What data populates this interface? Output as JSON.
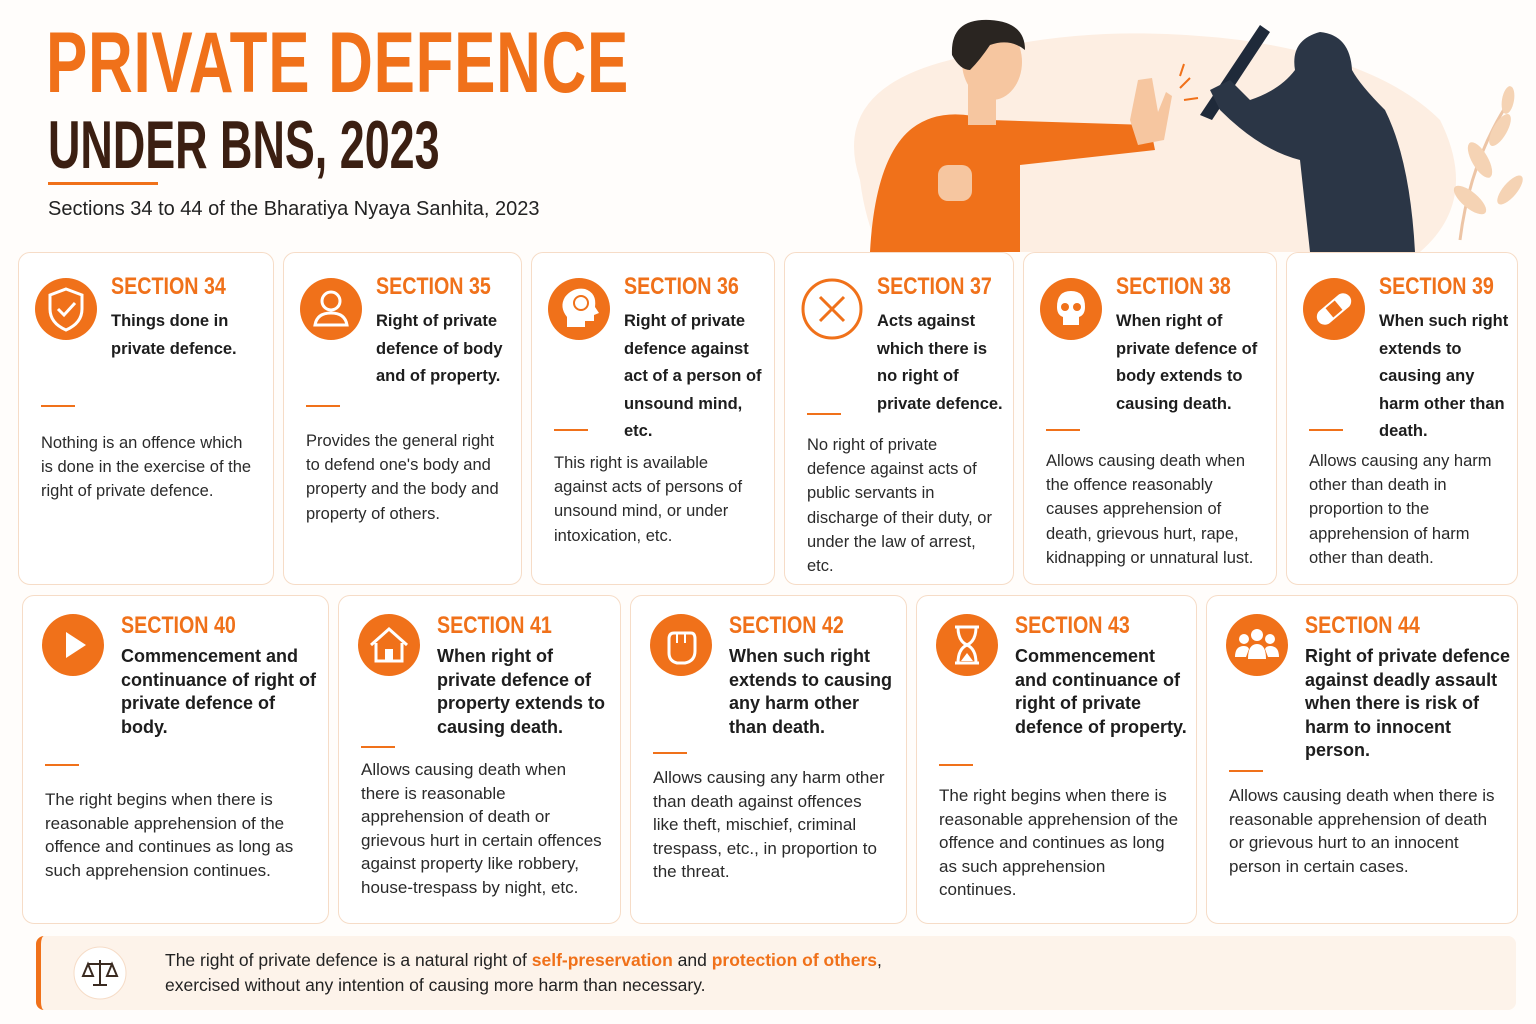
{
  "header": {
    "title": "PRIVATE DEFENCE",
    "subtitle": "UNDER BNS, 2023",
    "description": "Sections 34 to 44 of the Bharatiya Nyaya Sanhita, 2023"
  },
  "sections": [
    {
      "heading": "SECTION 34",
      "title": "Things done in private defence.",
      "body": "Nothing is an offence which is done in the exercise of the right of private defence."
    },
    {
      "heading": "SECTION 35",
      "title": "Right of private defence of body and of property.",
      "body": "Provides the general right to defend one's body and property and the body and property of others."
    },
    {
      "heading": "SECTION 36",
      "title": "Right of private defence against act of a person of unsound mind, etc.",
      "body": "This right is available against acts of persons of unsound mind, or under intoxication, etc."
    },
    {
      "heading": "SECTION 37",
      "title": "Acts against which there is no right of private defence.",
      "body": "No right of private defence against acts of public servants in discharge of their duty, or under the law of arrest, etc."
    },
    {
      "heading": "SECTION 38",
      "title": "When right of private defence of body extends to causing death.",
      "body": "Allows causing death when the offence reasonably causes apprehension of death, grievous hurt, rape, kidnapping or unnatural lust."
    },
    {
      "heading": "SECTION 39",
      "title": "When such right extends to causing any harm other than death.",
      "body": "Allows causing any harm other than death in proportion to the apprehension of harm other than death."
    },
    {
      "heading": "SECTION 40",
      "title": "Commencement and continuance of right of private defence of body.",
      "body": "The right begins when there is reasonable apprehension of the offence and continues as long as such apprehension continues."
    },
    {
      "heading": "SECTION 41",
      "title": "When right of private defence of property extends to causing death.",
      "body": "Allows causing death when there is reasonable apprehension of death or grievous hurt in certain offences against property like robbery, house-trespass by night, etc."
    },
    {
      "heading": "SECTION 42",
      "title": "When such right extends to causing any harm other than death.",
      "body": "Allows causing any harm other than death against offences like theft, mischief, criminal trespass, etc., in proportion to the threat."
    },
    {
      "heading": "SECTION 43",
      "title": "Commencement and continuance of right of private defence of property.",
      "body": "The right begins when there is reasonable apprehension of the offence and continues as long as such apprehension continues."
    },
    {
      "heading": "SECTION 44",
      "title": "Right of private defence against deadly assault when there is risk of harm to innocent person.",
      "body": "Allows causing death when there is reasonable apprehension of death or grievous hurt to an innocent person in certain cases."
    }
  ],
  "footer": {
    "text": "The right of private defence is a natural right of",
    "highlight_1": "self-preservation",
    "joiner": "and",
    "highlight_2": "protection of others",
    "comma": ",",
    "line_2": "exercised without any intention of causing more harm than necessary."
  }
}
